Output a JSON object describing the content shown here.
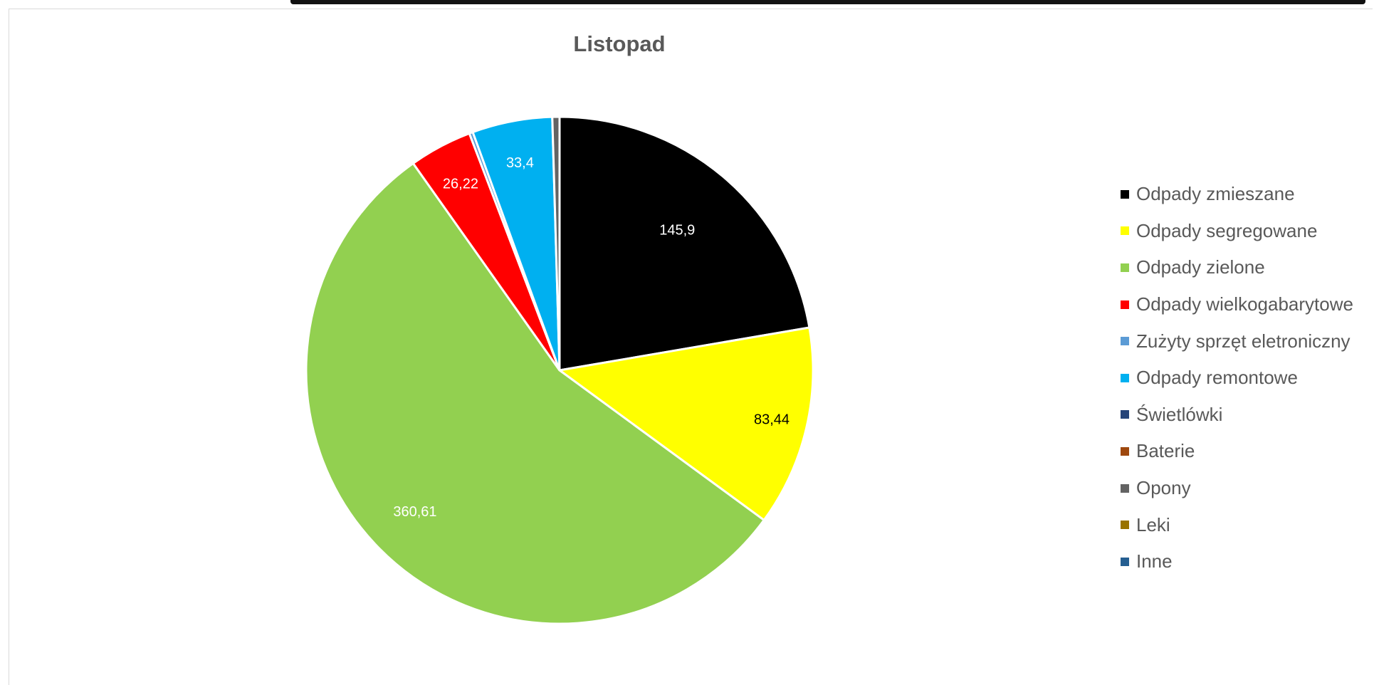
{
  "chart_data": {
    "type": "pie",
    "title": "Listopad",
    "legend_position": "right",
    "slices": [
      {
        "name": "Odpady zmieszane",
        "value": 145.9,
        "label": "145,9",
        "color": "#000000",
        "label_color": "#ffffff"
      },
      {
        "name": "Odpady segregowane",
        "value": 83.44,
        "label": "83,44",
        "color": "#ffff00",
        "label_color": "#000000"
      },
      {
        "name": "Odpady zielone",
        "value": 360.61,
        "label": "360,61",
        "color": "#92d050",
        "label_color": "#ffffff"
      },
      {
        "name": "Odpady wielkogabarytowe",
        "value": 26.22,
        "label": "26,22",
        "color": "#ff0000",
        "label_color": "#ffffff"
      },
      {
        "name": "Zużyty sprzęt eletroniczny",
        "value": 1.5,
        "label": "",
        "color": "#5b9bd5",
        "label_color": "#ffffff"
      },
      {
        "name": "Odpady remontowe",
        "value": 33.4,
        "label": "33,4",
        "color": "#00b0f0",
        "label_color": "#ffffff"
      },
      {
        "name": "Świetlówki",
        "value": 0,
        "label": "",
        "color": "#264478",
        "label_color": "#ffffff"
      },
      {
        "name": "Baterie",
        "value": 0,
        "label": "",
        "color": "#9e480e",
        "label_color": "#ffffff"
      },
      {
        "name": "Opony",
        "value": 3.0,
        "label": "",
        "color": "#636363",
        "label_color": "#ffffff"
      },
      {
        "name": "Leki",
        "value": 0,
        "label": "",
        "color": "#997300",
        "label_color": "#ffffff"
      },
      {
        "name": "Inne",
        "value": 0,
        "label": "",
        "color": "#255e91",
        "label_color": "#ffffff"
      }
    ]
  }
}
